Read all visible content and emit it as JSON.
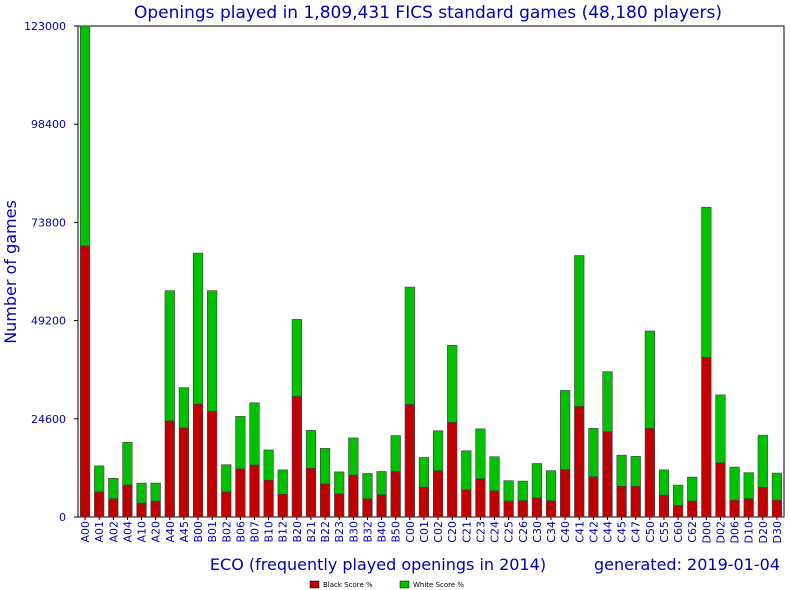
{
  "chart_data": {
    "type": "bar",
    "stacked": true,
    "title": "Openings played in 1,809,431 FICS standard games (48,180 players)",
    "xlabel": "ECO (frequently played openings in 2014)",
    "ylabel": "Number of games",
    "generated": "generated: 2019-01-04",
    "ylim": [
      0,
      123000
    ],
    "yticks": [
      0,
      24600,
      49200,
      73800,
      98400,
      123000
    ],
    "grid": false,
    "legend_position": "bottom-center",
    "categories": [
      "A00",
      "A01",
      "A02",
      "A04",
      "A10",
      "A20",
      "A40",
      "A45",
      "B00",
      "B01",
      "B02",
      "B06",
      "B07",
      "B10",
      "B12",
      "B20",
      "B21",
      "B22",
      "B23",
      "B30",
      "B32",
      "B40",
      "B50",
      "C00",
      "C01",
      "C02",
      "C20",
      "C21",
      "C23",
      "C24",
      "C25",
      "C26",
      "C30",
      "C34",
      "C40",
      "C41",
      "C42",
      "C44",
      "C45",
      "C47",
      "C50",
      "C55",
      "C60",
      "C62",
      "D00",
      "D02",
      "D06",
      "D10",
      "D20",
      "D30"
    ],
    "series": [
      {
        "name": "Black Score %",
        "color": "#c00000",
        "values": [
          67900,
          6300,
          4600,
          8000,
          3500,
          4000,
          24100,
          22300,
          28300,
          26500,
          6300,
          12100,
          13000,
          9200,
          5700,
          30200,
          12200,
          8300,
          5800,
          10500,
          4600,
          5600,
          11400,
          28200,
          7500,
          11600,
          23700,
          6800,
          9600,
          6600,
          4000,
          4100,
          4800,
          4100,
          11900,
          27700,
          10100,
          21400,
          7700,
          7700,
          22200,
          5500,
          2900,
          4000,
          40000,
          13600,
          4200,
          4600,
          7400,
          4200
        ]
      },
      {
        "name": "White Score %",
        "color": "#00c000",
        "values": [
          55100,
          6500,
          5100,
          10700,
          5000,
          4500,
          32600,
          10100,
          37800,
          30200,
          6800,
          13100,
          15600,
          7600,
          6100,
          19300,
          9500,
          8900,
          5500,
          9300,
          6300,
          5800,
          9000,
          29400,
          7400,
          10000,
          19300,
          9800,
          12500,
          8500,
          5100,
          4900,
          8600,
          7500,
          19800,
          37800,
          12100,
          15000,
          7800,
          7500,
          24400,
          6300,
          5100,
          6000,
          37600,
          17000,
          8300,
          6500,
          13100,
          6800
        ]
      }
    ]
  }
}
